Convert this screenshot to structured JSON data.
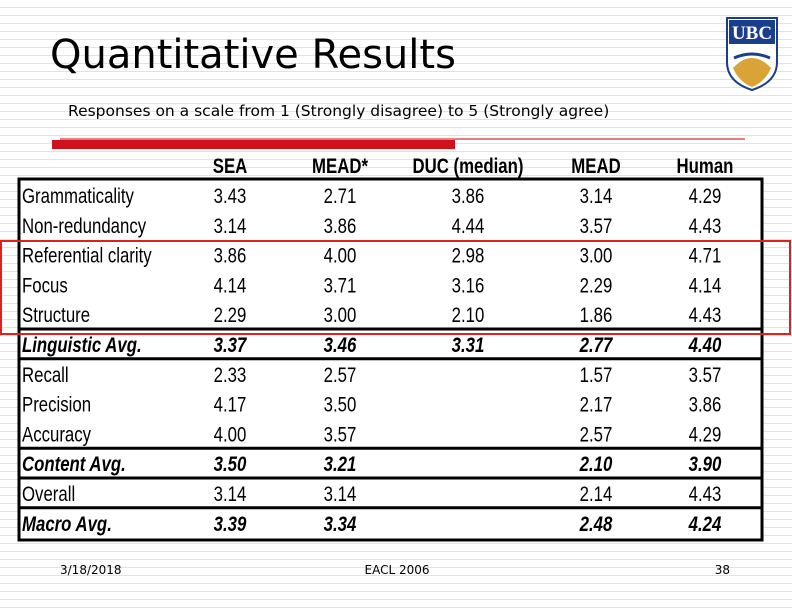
{
  "title": "Quantitative Results",
  "subtitle": "Responses on a scale from 1 (Strongly disagree) to 5 (Strongly agree)",
  "logo": "UBC",
  "table": {
    "header": [
      "SEA",
      "MEAD*",
      "DUC (median)",
      "MEAD",
      "Human"
    ],
    "rows": [
      [
        "Grammaticality",
        "3.43",
        "2.71",
        "3.86",
        "3.14",
        "4.29"
      ],
      [
        "Non-redundancy",
        "3.14",
        "3.86",
        "4.44",
        "3.57",
        "4.43"
      ],
      [
        "Referential clarity",
        "3.86",
        "4.00",
        "2.98",
        "3.00",
        "4.71"
      ],
      [
        "Focus",
        "4.14",
        "3.71",
        "3.16",
        "2.29",
        "4.14"
      ],
      [
        "Structure",
        "2.29",
        "3.00",
        "2.10",
        "1.86",
        "4.43"
      ],
      [
        "Linguistic Avg.",
        "3.37",
        "3.46",
        "3.31",
        "2.77",
        "4.40"
      ],
      [
        "Recall",
        "2.33",
        "2.57",
        null,
        "1.57",
        "3.57"
      ],
      [
        "Precision",
        "4.17",
        "3.50",
        null,
        "2.17",
        "3.86"
      ],
      [
        "Accuracy",
        "4.00",
        "3.57",
        null,
        "2.57",
        "4.29"
      ],
      [
        "Content Avg.",
        "3.50",
        "3.21",
        null,
        "2.10",
        "3.90"
      ],
      [
        "Overall",
        "3.14",
        "3.14",
        null,
        "2.14",
        "4.43"
      ],
      [
        "Macro Avg.",
        "3.39",
        "3.34",
        null,
        "2.48",
        "4.24"
      ]
    ]
  },
  "footer": {
    "date": "3/18/2018",
    "venue": "EACL 2006",
    "page": "38"
  }
}
